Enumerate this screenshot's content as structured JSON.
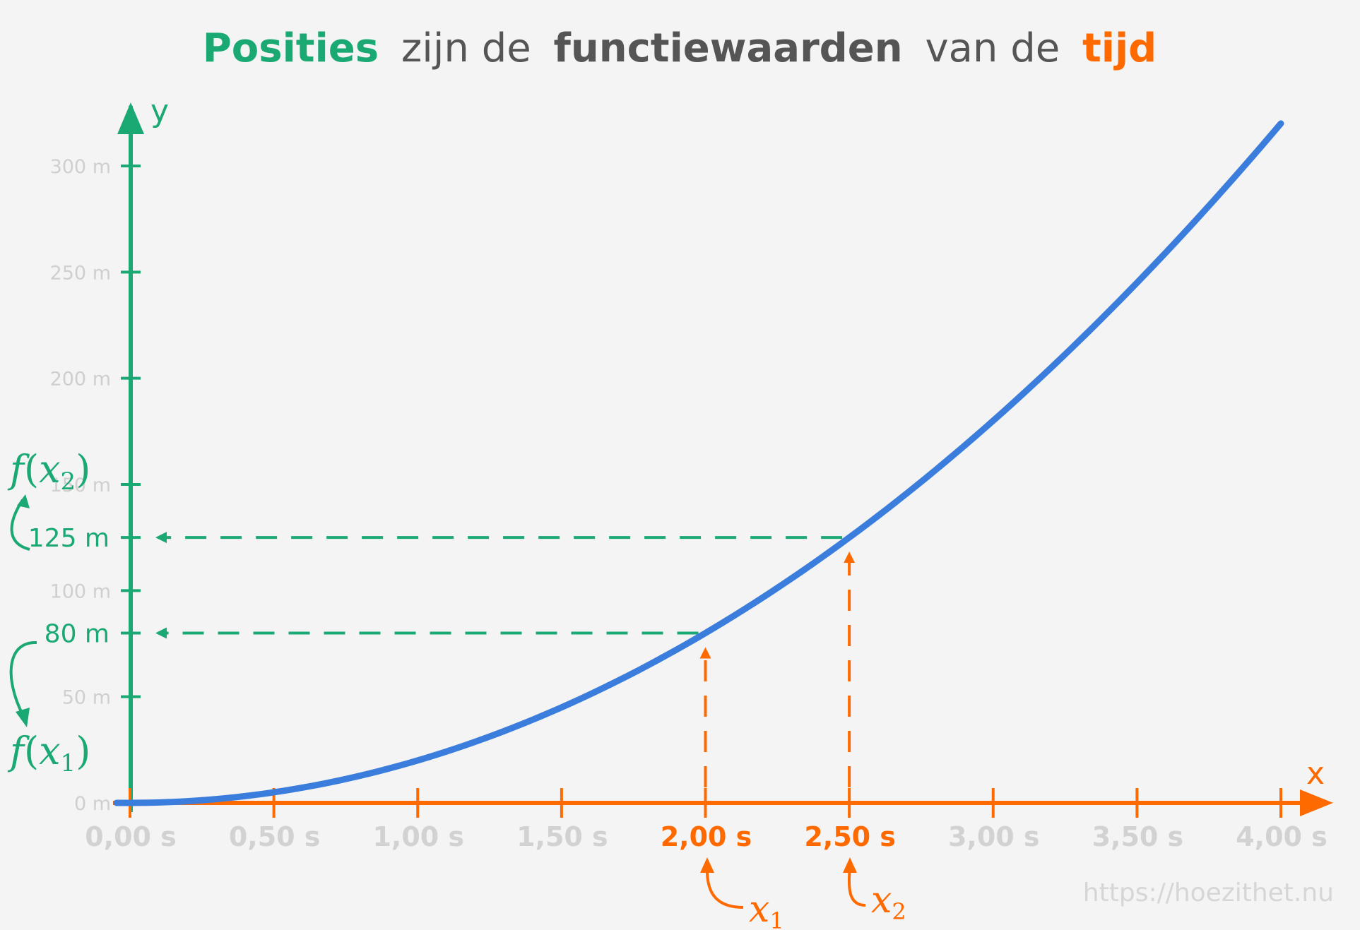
{
  "title": {
    "part1": "Posities",
    "part2": "zijn de",
    "part3": "functiewaarden",
    "part4": "van de",
    "part5": "tijd"
  },
  "axes": {
    "y_letter": "y",
    "x_letter": "x"
  },
  "annotations": {
    "fx1_func": "f",
    "fx1_var": "x",
    "fx1_sub": "1",
    "fx2_func": "f",
    "fx2_var": "x",
    "fx2_sub": "2",
    "x1_var": "x",
    "x1_sub": "1",
    "x2_var": "x",
    "x2_sub": "2"
  },
  "watermark": "https://hoezithet.nu",
  "colors": {
    "green": "#1aa873",
    "orange": "#ff6a00",
    "curve": "#3b7ddd",
    "tick_label": "#d2d2d2"
  },
  "chart_data": {
    "type": "line",
    "function": "y = 20 * x^2",
    "x": [
      0,
      0.25,
      0.5,
      0.75,
      1.0,
      1.25,
      1.5,
      1.75,
      2.0,
      2.25,
      2.5,
      2.75,
      3.0,
      3.25,
      3.5,
      3.75,
      4.0
    ],
    "y": [
      0,
      1.25,
      5,
      11.25,
      20,
      31.25,
      45,
      61.25,
      80,
      101.25,
      125,
      151.25,
      180,
      211.25,
      245,
      281.25,
      320
    ],
    "xlim": [
      0,
      4.0
    ],
    "ylim": [
      0,
      320
    ],
    "x_ticks": [
      0,
      0.5,
      1.0,
      1.5,
      2.0,
      2.5,
      3.0,
      3.5,
      4.0
    ],
    "x_tick_labels": [
      "0,00 s",
      "0,50 s",
      "1,00 s",
      "1,50 s",
      "2,00 s",
      "2,50 s",
      "3,00 s",
      "3,50 s",
      "4,00 s"
    ],
    "y_ticks": [
      0,
      50,
      100,
      150,
      200,
      250,
      300
    ],
    "y_tick_labels": [
      "0 m",
      "50 m",
      "100 m",
      "150 m",
      "200 m",
      "250 m",
      "300 m"
    ],
    "highlighted_points": [
      {
        "x": 2.0,
        "y": 80,
        "x_label": "2,00 s",
        "y_label": "80 m"
      },
      {
        "x": 2.5,
        "y": 125,
        "x_label": "2,50 s",
        "y_label": "125 m"
      }
    ],
    "grid": false
  }
}
